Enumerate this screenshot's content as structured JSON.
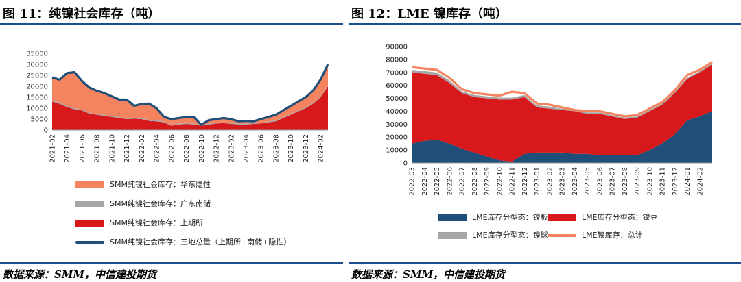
{
  "left": {
    "title": "图 11：纯镍社会库存（吨）",
    "source": "数据来源：SMM，中信建投期货",
    "chart_data": {
      "type": "area",
      "stacked": true,
      "title": "",
      "xlabel": "",
      "ylabel": "",
      "ylim": [
        0,
        35000
      ],
      "yticks": [
        0,
        5000,
        10000,
        15000,
        20000,
        25000,
        30000,
        35000
      ],
      "xticks": [
        "2021-02",
        "2021-04",
        "2021-06",
        "2021-08",
        "2021-10",
        "2021-12",
        "2022-02",
        "2022-04",
        "2022-06",
        "2022-08",
        "2022-10",
        "2022-12",
        "2023-02",
        "2023-04",
        "2023-06",
        "2023-08",
        "2023-10",
        "2023-12",
        "2024-02"
      ],
      "x": [
        "2021-02",
        "2021-03",
        "2021-04",
        "2021-05",
        "2021-06",
        "2021-07",
        "2021-08",
        "2021-09",
        "2021-10",
        "2021-11",
        "2021-12",
        "2022-01",
        "2022-02",
        "2022-03",
        "2022-04",
        "2022-05",
        "2022-06",
        "2022-07",
        "2022-08",
        "2022-09",
        "2022-10",
        "2022-11",
        "2022-12",
        "2023-01",
        "2023-02",
        "2023-03",
        "2023-04",
        "2023-05",
        "2023-06",
        "2023-07",
        "2023-08",
        "2023-09",
        "2023-10",
        "2023-11",
        "2023-12",
        "2024-01",
        "2024-02",
        "2024-03"
      ],
      "series": [
        {
          "name": "SMM纯镍社会库存：上期所",
          "color": "#d7191c",
          "values": [
            13000,
            12000,
            10500,
            9500,
            9000,
            7500,
            7000,
            6500,
            6000,
            5500,
            5000,
            5200,
            5000,
            4200,
            4000,
            3500,
            2000,
            2500,
            2800,
            2500,
            2000,
            2500,
            3000,
            3200,
            2800,
            2600,
            2500,
            2800,
            3000,
            3500,
            4000,
            5500,
            7000,
            8500,
            10000,
            12000,
            15000,
            20000
          ]
        },
        {
          "name": "SMM纯镍社会库存：广东南储",
          "color": "#a6a6a6",
          "values": [
            500,
            500,
            500,
            400,
            400,
            400,
            400,
            400,
            400,
            400,
            400,
            400,
            400,
            400,
            400,
            400,
            400,
            400,
            400,
            400,
            400,
            400,
            400,
            400,
            400,
            400,
            400,
            400,
            400,
            400,
            400,
            400,
            400,
            400,
            400,
            400,
            400,
            400
          ]
        },
        {
          "name": "SMM纯镍社会库存：华东隐性",
          "color": "#f4845f",
          "values": [
            10500,
            10500,
            15000,
            16500,
            13000,
            11500,
            10500,
            10000,
            9000,
            8000,
            8500,
            5500,
            6500,
            7500,
            5600,
            2100,
            2600,
            2600,
            2800,
            3100,
            0,
            1600,
            1600,
            1900,
            1800,
            1000,
            1300,
            800,
            1600,
            2100,
            2600,
            3100,
            3600,
            4100,
            4600,
            5600,
            7600,
            9600
          ]
        }
      ],
      "total": {
        "name": "SMM纯镍社会库存：三地总量（上期所+南储+隐性）",
        "color": "#1f4e79",
        "values": [
          24000,
          23000,
          26000,
          26400,
          22400,
          19400,
          17900,
          16900,
          15400,
          13900,
          13900,
          11100,
          11900,
          12100,
          10000,
          6000,
          5000,
          5500,
          6000,
          6000,
          2400,
          4500,
          5000,
          5500,
          5000,
          4000,
          4200,
          4000,
          5000,
          6000,
          7000,
          9000,
          11000,
          13000,
          15000,
          18000,
          23000,
          30000
        ]
      }
    }
  },
  "right": {
    "title": "图 12：LME 镍库存（吨）",
    "source": "数据来源：SMM，中信建投期货",
    "chart_data": {
      "type": "area",
      "stacked": true,
      "title": "",
      "xlabel": "",
      "ylabel": "",
      "ylim": [
        0,
        90000
      ],
      "yticks": [
        0,
        10000,
        20000,
        30000,
        40000,
        50000,
        60000,
        70000,
        80000,
        90000
      ],
      "xticks": [
        "2022-03",
        "2022-04",
        "2022-05",
        "2022-06",
        "2022-07",
        "2022-08",
        "2022-09",
        "2022-10",
        "2022-11",
        "2022-12",
        "2023-01",
        "2023-02",
        "2023-03",
        "2023-04",
        "2023-05",
        "2023-06",
        "2023-07",
        "2023-08",
        "2023-09",
        "2023-10",
        "2023-11",
        "2023-12",
        "2024-01",
        "2024-02"
      ],
      "x": [
        "2022-03",
        "2022-04",
        "2022-05",
        "2022-06",
        "2022-07",
        "2022-08",
        "2022-09",
        "2022-10",
        "2022-11",
        "2022-12",
        "2023-01",
        "2023-02",
        "2023-03",
        "2023-04",
        "2023-05",
        "2023-06",
        "2023-07",
        "2023-08",
        "2023-09",
        "2023-10",
        "2023-11",
        "2023-12",
        "2024-01",
        "2024-02",
        "2024-03"
      ],
      "series": [
        {
          "name": "LME库存分型态：镍板",
          "color": "#1f4e79",
          "values": [
            15000,
            17000,
            18000,
            15000,
            11000,
            8000,
            5000,
            2000,
            1000,
            7000,
            8000,
            8000,
            8000,
            7000,
            7000,
            6000,
            6000,
            6000,
            6000,
            10000,
            15000,
            22000,
            33000,
            36000,
            40000
          ]
        },
        {
          "name": "LME库存分型态：镍豆",
          "color": "#d7191c",
          "values": [
            55000,
            52000,
            50000,
            47000,
            43000,
            43000,
            45000,
            47000,
            48000,
            44000,
            35000,
            34000,
            33000,
            33000,
            31000,
            32000,
            30000,
            28000,
            29000,
            30000,
            30000,
            32000,
            32000,
            34000,
            36000
          ]
        },
        {
          "name": "LME库存分型态：镍球",
          "color": "#a6a6a6",
          "values": [
            2000,
            2000,
            2000,
            2000,
            1500,
            1500,
            1500,
            1500,
            1500,
            1500,
            1500,
            1500,
            1000,
            1000,
            1000,
            1000,
            1000,
            1000,
            1000,
            1000,
            1000,
            1000,
            1000,
            1000,
            1000
          ]
        }
      ],
      "total": {
        "name": "LME镍库存：总计",
        "color": "#f4845f",
        "values": [
          74000,
          73000,
          72000,
          66000,
          57000,
          54000,
          53000,
          52000,
          55000,
          54000,
          46000,
          45000,
          43000,
          41000,
          40000,
          40000,
          38000,
          36000,
          37000,
          42000,
          47000,
          56000,
          68000,
          72000,
          78000
        ]
      }
    }
  }
}
